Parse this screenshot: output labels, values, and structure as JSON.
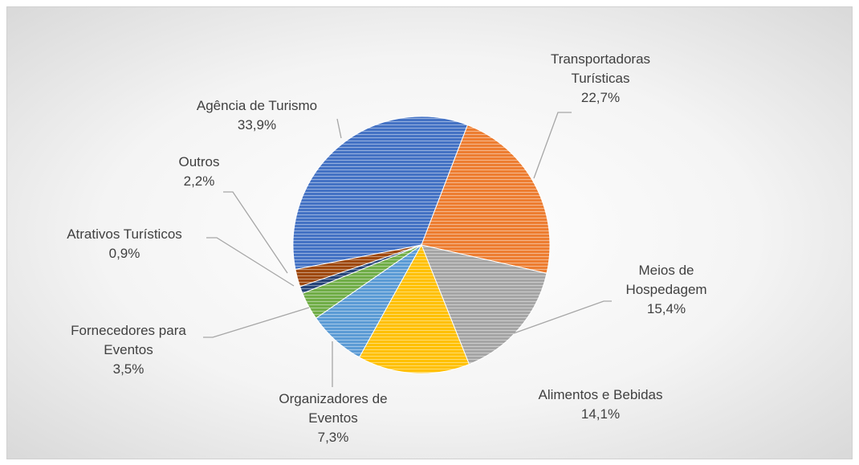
{
  "chart_data": {
    "type": "pie",
    "categories": [
      "Agência de Turismo",
      "Transportadoras Turísticas",
      "Meios de Hospedagem",
      "Alimentos e Bebidas",
      "Organizadores de Eventos",
      "Fornecedores para Eventos",
      "Atrativos Turísticos",
      "Outros"
    ],
    "values": [
      33.9,
      22.7,
      15.4,
      14.1,
      7.3,
      3.5,
      0.9,
      2.2
    ],
    "value_labels": [
      "33,9%",
      "22,7%",
      "15,4%",
      "14,1%",
      "7,3%",
      "3,5%",
      "0,9%",
      "2,2%"
    ],
    "colors": [
      "#4472c4",
      "#ed7d31",
      "#a5a5a5",
      "#ffc000",
      "#5b9bd5",
      "#70ad47",
      "#264478",
      "#9e480e"
    ]
  }
}
